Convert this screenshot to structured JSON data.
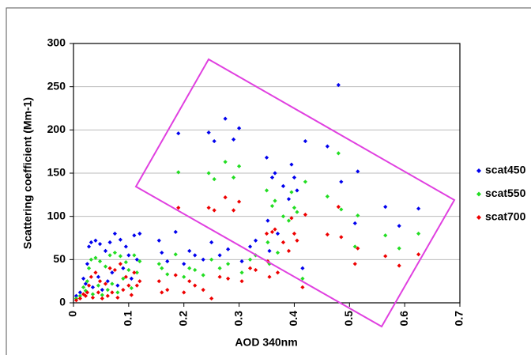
{
  "chart_data": {
    "type": "scatter",
    "xlabel": "AOD 340nm",
    "ylabel": "Scattering coefficient (Mm-1)",
    "xlim": [
      0,
      0.7
    ],
    "xticks": [
      0,
      0.1,
      0.2,
      0.3,
      0.4,
      0.5,
      0.6,
      0.7
    ],
    "ylim": [
      0,
      300
    ],
    "yticks": [
      0,
      50,
      100,
      150,
      200,
      250,
      300
    ],
    "grid": true,
    "legend": "right",
    "x": [
      0.005,
      0.012,
      0.018,
      0.022,
      0.025,
      0.028,
      0.032,
      0.035,
      0.04,
      0.045,
      0.048,
      0.052,
      0.058,
      0.062,
      0.066,
      0.07,
      0.075,
      0.08,
      0.085,
      0.09,
      0.095,
      0.1,
      0.105,
      0.11,
      0.115,
      0.12,
      0.155,
      0.16,
      0.17,
      0.185,
      0.19,
      0.2,
      0.21,
      0.22,
      0.235,
      0.245,
      0.25,
      0.255,
      0.265,
      0.275,
      0.28,
      0.29,
      0.3,
      0.305,
      0.32,
      0.33,
      0.35,
      0.352,
      0.355,
      0.36,
      0.365,
      0.37,
      0.38,
      0.39,
      0.395,
      0.4,
      0.405,
      0.415,
      0.42,
      0.46,
      0.48,
      0.485,
      0.51,
      0.515,
      0.565,
      0.59,
      0.625
    ],
    "series": [
      {
        "name": "scat450",
        "color": "#0000ee",
        "values": [
          8,
          12,
          28,
          22,
          45,
          65,
          70,
          18,
          72,
          30,
          68,
          15,
          60,
          25,
          70,
          35,
          80,
          20,
          73,
          40,
          65,
          55,
          28,
          78,
          50,
          80,
          72,
          58,
          48,
          82,
          196,
          45,
          60,
          55,
          50,
          197,
          70,
          187,
          55,
          213,
          62,
          189,
          202,
          48,
          65,
          72,
          168,
          95,
          60,
          145,
          150,
          80,
          135,
          120,
          160,
          145,
          130,
          40,
          187,
          181,
          252,
          140,
          92,
          152,
          111,
          89,
          109
        ]
      },
      {
        "name": "scat550",
        "color": "#22dd22",
        "values": [
          5,
          8,
          18,
          14,
          25,
          40,
          50,
          10,
          52,
          20,
          48,
          9,
          42,
          15,
          55,
          22,
          58,
          12,
          54,
          28,
          47,
          38,
          17,
          55,
          35,
          48,
          45,
          40,
          33,
          56,
          151,
          30,
          40,
          38,
          32,
          150,
          50,
          143,
          40,
          163,
          45,
          145,
          158,
          35,
          50,
          55,
          130,
          70,
          45,
          112,
          118,
          58,
          100,
          95,
          128,
          110,
          105,
          28,
          140,
          123,
          173,
          108,
          65,
          101,
          78,
          63,
          80
        ]
      },
      {
        "name": "scat700",
        "color": "#ee0000",
        "values": [
          3,
          5,
          10,
          8,
          12,
          20,
          30,
          6,
          35,
          12,
          25,
          5,
          22,
          8,
          40,
          12,
          38,
          6,
          45,
          15,
          30,
          20,
          9,
          35,
          20,
          25,
          25,
          12,
          15,
          32,
          110,
          12,
          25,
          20,
          15,
          110,
          5,
          107,
          30,
          122,
          28,
          107,
          117,
          25,
          40,
          38,
          80,
          48,
          30,
          82,
          85,
          35,
          70,
          60,
          98,
          80,
          72,
          18,
          102,
          79,
          111,
          76,
          45,
          63,
          54,
          43,
          56
        ]
      }
    ]
  }
}
